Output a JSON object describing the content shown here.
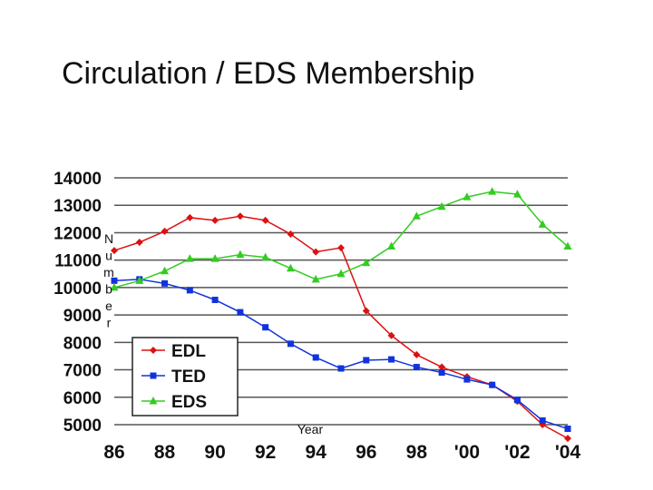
{
  "slide": {
    "title": "Circulation / EDS Membership"
  },
  "chart_data": {
    "type": "line",
    "title": "Circulation / EDS Membership",
    "xlabel": "Year",
    "ylabel": "Number",
    "ylim": [
      5000,
      14000
    ],
    "xlim": [
      1986,
      2004
    ],
    "x": [
      1986,
      1987,
      1988,
      1989,
      1990,
      1991,
      1992,
      1993,
      1994,
      1995,
      1996,
      1997,
      1998,
      1999,
      2000,
      2001,
      2002,
      2003,
      2004
    ],
    "x_ticks": [
      1986,
      1988,
      1990,
      1992,
      1994,
      1996,
      1998,
      2000,
      2002,
      2004
    ],
    "x_tick_labels": [
      "86",
      "88",
      "90",
      "92",
      "94",
      "96",
      "98",
      "'00",
      "'02",
      "'04"
    ],
    "y_ticks": [
      5000,
      6000,
      7000,
      8000,
      9000,
      10000,
      11000,
      12000,
      13000,
      14000
    ],
    "y_tick_labels": [
      "5000",
      "6000",
      "7000",
      "8000",
      "9000",
      "10000",
      "11000",
      "12000",
      "13000",
      "14000"
    ],
    "grid": true,
    "legend_position": "bottom-left",
    "series": [
      {
        "name": "EDL",
        "color": "#dd1111",
        "marker": "diamond",
        "values": [
          11350,
          11650,
          12050,
          12550,
          12450,
          12600,
          12450,
          11950,
          11300,
          11450,
          9150,
          8250,
          7550,
          7100,
          6750,
          6450,
          5850,
          5000,
          4500
        ]
      },
      {
        "name": "TED",
        "color": "#1133dd",
        "marker": "square",
        "values": [
          10250,
          10300,
          10150,
          9900,
          9550,
          9100,
          8550,
          7950,
          7450,
          7050,
          7350,
          7380,
          7100,
          6900,
          6650,
          6450,
          5900,
          5150,
          4850
        ]
      },
      {
        "name": "EDS",
        "color": "#33cc22",
        "marker": "triangle",
        "values": [
          10000,
          10250,
          10600,
          11050,
          11050,
          11200,
          11100,
          10700,
          10300,
          10500,
          10900,
          11500,
          12600,
          12950,
          13300,
          13500,
          13400,
          12300,
          11500
        ]
      }
    ]
  }
}
